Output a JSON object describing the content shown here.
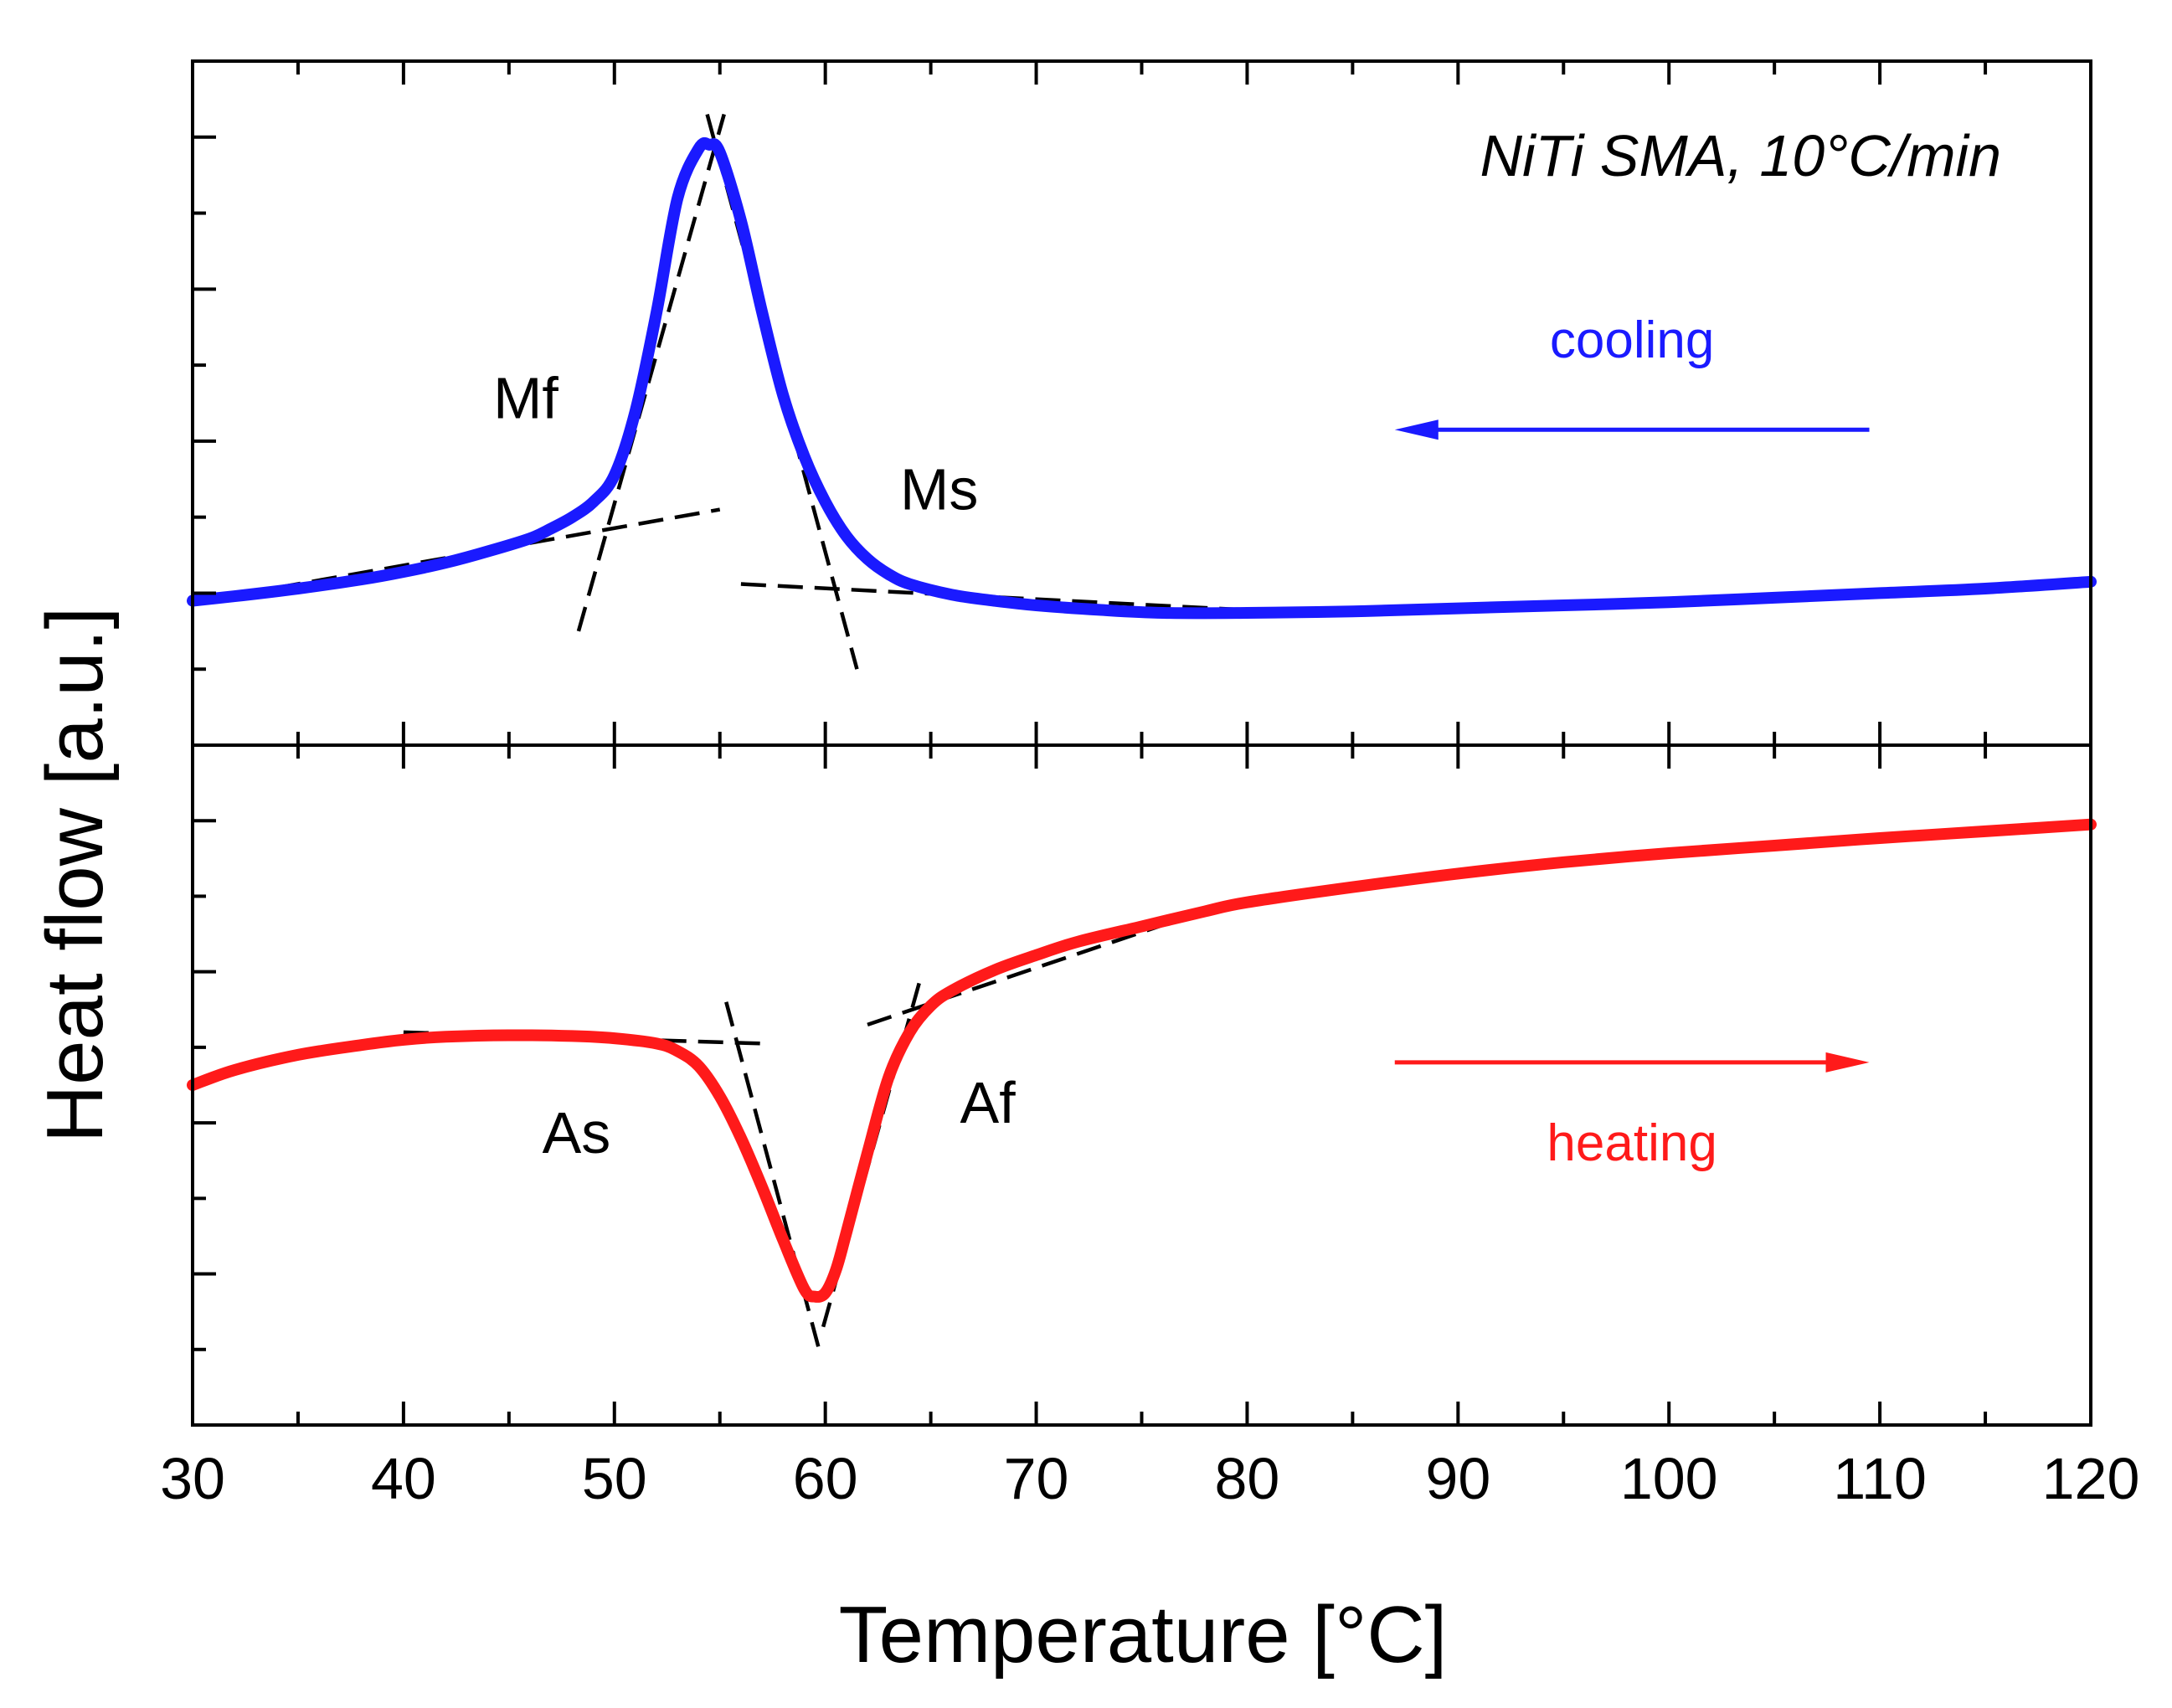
{
  "chart_data": {
    "type": "line",
    "xlabel": "Temperature [°C]",
    "ylabel": "Heat flow [a.u.]",
    "xlim": [
      30,
      120
    ],
    "x_ticks": [
      30,
      40,
      50,
      60,
      70,
      80,
      90,
      100,
      110,
      120
    ],
    "x_minor_step": 5,
    "y_tick_labels": "none",
    "ylim_cooling": [
      0,
      9
    ],
    "ylim_heating": [
      0,
      9
    ],
    "y_tick_step_major": 2,
    "y_tick_step_minor": 1,
    "grid": false,
    "note": "NiTi SMA, 10°C/min",
    "series": [
      {
        "name": "cooling",
        "panel": "cooling",
        "color": "#1a1aff",
        "x": [
          30,
          32,
          35,
          38,
          40,
          42,
          44,
          46,
          47,
          48,
          49,
          50,
          51,
          52,
          53,
          54,
          54.5,
          55,
          56,
          57,
          58,
          59,
          60,
          61,
          62,
          63,
          64,
          66,
          68,
          70,
          73,
          76,
          80,
          85,
          90,
          95,
          100,
          105,
          110,
          115,
          120
        ],
        "y": [
          1.9,
          1.96,
          2.06,
          2.18,
          2.28,
          2.4,
          2.55,
          2.72,
          2.85,
          3.0,
          3.2,
          3.55,
          4.4,
          5.7,
          7.2,
          7.85,
          7.9,
          7.8,
          6.9,
          5.7,
          4.6,
          3.8,
          3.2,
          2.75,
          2.45,
          2.25,
          2.12,
          1.98,
          1.9,
          1.84,
          1.78,
          1.74,
          1.74,
          1.76,
          1.8,
          1.84,
          1.88,
          1.94,
          2.0,
          2.06,
          2.15
        ]
      },
      {
        "name": "heating",
        "panel": "heating",
        "color": "#ff1a1a",
        "x": [
          30,
          32,
          35,
          38,
          40,
          42,
          45,
          48,
          50,
          52,
          53,
          54,
          55,
          56,
          57,
          58,
          59,
          59.5,
          60,
          60.5,
          61,
          62,
          63,
          64,
          65,
          66,
          68,
          70,
          72,
          75,
          78,
          80,
          85,
          90,
          95,
          100,
          105,
          110,
          115,
          120
        ],
        "y": [
          4.5,
          4.7,
          4.9,
          5.03,
          5.1,
          5.14,
          5.16,
          5.15,
          5.12,
          5.05,
          4.95,
          4.75,
          4.35,
          3.8,
          3.15,
          2.45,
          1.8,
          1.7,
          1.75,
          2.05,
          2.55,
          3.6,
          4.6,
          5.2,
          5.55,
          5.75,
          6.02,
          6.22,
          6.4,
          6.6,
          6.8,
          6.92,
          7.12,
          7.3,
          7.45,
          7.57,
          7.67,
          7.77,
          7.86,
          7.95
        ]
      }
    ],
    "tangent_lines": [
      {
        "panel": "cooling",
        "x": [
          30.5,
          55
        ],
        "y": [
          1.9,
          3.1
        ]
      },
      {
        "panel": "cooling",
        "x": [
          48.3,
          55.2
        ],
        "y": [
          1.5,
          8.3
        ]
      },
      {
        "panel": "cooling",
        "x": [
          54.4,
          61.5
        ],
        "y": [
          8.3,
          1.0
        ]
      },
      {
        "panel": "cooling",
        "x": [
          56,
          82
        ],
        "y": [
          2.12,
          1.75
        ]
      },
      {
        "panel": "heating",
        "x": [
          40,
          57
        ],
        "y": [
          5.2,
          5.05
        ]
      },
      {
        "panel": "heating",
        "x": [
          55.3,
          59.8
        ],
        "y": [
          5.6,
          0.9
        ]
      },
      {
        "panel": "heating",
        "x": [
          59.9,
          64.5
        ],
        "y": [
          1.3,
          5.9
        ]
      },
      {
        "panel": "heating",
        "x": [
          62,
          79
        ],
        "y": [
          5.3,
          6.9
        ]
      }
    ],
    "annotations": [
      {
        "label": "Mf",
        "panel": "cooling",
        "x": 45.8,
        "y": 4.3
      },
      {
        "label": "Ms",
        "panel": "cooling",
        "x": 65.4,
        "y": 3.1
      },
      {
        "label": "As",
        "panel": "heating",
        "x": 48.2,
        "y": 3.6
      },
      {
        "label": "Af",
        "panel": "heating",
        "x": 67.7,
        "y": 4.0
      }
    ],
    "direction_arrows": [
      {
        "label": "cooling",
        "panel": "cooling",
        "from_x": 109.5,
        "to_x": 87,
        "y": 4.15,
        "label_y": 5.1,
        "color": "#1a1aff"
      },
      {
        "label": "heating",
        "panel": "heating",
        "from_x": 87,
        "to_x": 109.5,
        "y": 4.8,
        "label_y": 3.5,
        "color": "#ff1a1a"
      }
    ]
  }
}
